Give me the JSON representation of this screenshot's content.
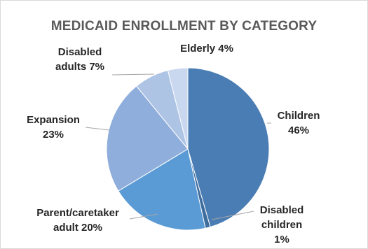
{
  "chart_data": {
    "type": "pie",
    "title": "MEDICAID ENROLLMENT BY CATEGORY",
    "slices": [
      {
        "label_lines": [
          "Children",
          "46%"
        ],
        "category": "Children",
        "value": 46,
        "color": "#4a7db4"
      },
      {
        "label_lines": [
          "Disabled",
          "children",
          "1%"
        ],
        "category": "Disabled children",
        "value": 1,
        "color": "#3f6d9e"
      },
      {
        "label_lines": [
          "Parent/caretaker",
          "adult 20%"
        ],
        "category": "Parent/caretaker adult",
        "value": 20,
        "color": "#5b9bd5"
      },
      {
        "label_lines": [
          "Expansion",
          "23%"
        ],
        "category": "Expansion",
        "value": 23,
        "color": "#8faedb"
      },
      {
        "label_lines": [
          "Disabled",
          "adults 7%"
        ],
        "category": "Disabled adults",
        "value": 7,
        "color": "#aec4e5"
      },
      {
        "label_lines": [
          "Elderly 4%"
        ],
        "category": "Elderly",
        "value": 4,
        "color": "#c9d8ef"
      }
    ],
    "legend": "none",
    "data_labels": "outside with leader lines"
  }
}
